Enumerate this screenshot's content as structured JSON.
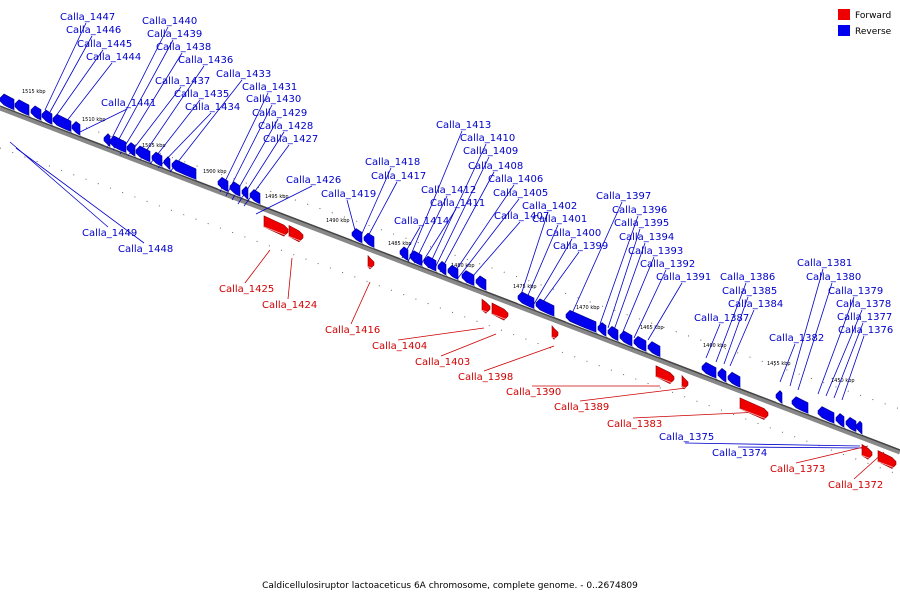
{
  "legend": {
    "forward_label": "Forward",
    "reverse_label": "Reverse",
    "forward_color": "#ee0000",
    "reverse_color": "#0000ee"
  },
  "caption": "Caldicellulosiruptor lactoaceticus 6A chromosome, complete genome. - 0..2674809",
  "axis": {
    "unit": "kbp",
    "ticks": [
      1515,
      1510,
      1505,
      1500,
      1495,
      1490,
      1485,
      1480,
      1475,
      1470,
      1465,
      1460,
      1455,
      1450
    ]
  },
  "reverse_genes": [
    "Calla_1447",
    "Calla_1446",
    "Calla_1445",
    "Calla_1444",
    "Calla_1441",
    "Calla_1440",
    "Calla_1439",
    "Calla_1438",
    "Calla_1437",
    "Calla_1436",
    "Calla_1435",
    "Calla_1434",
    "Calla_1433",
    "Calla_1431",
    "Calla_1430",
    "Calla_1429",
    "Calla_1428",
    "Calla_1427",
    "Calla_1426",
    "Calla_1419",
    "Calla_1418",
    "Calla_1417",
    "Calla_1414",
    "Calla_1413",
    "Calla_1412",
    "Calla_1411",
    "Calla_1410",
    "Calla_1409",
    "Calla_1408",
    "Calla_1407",
    "Calla_1406",
    "Calla_1405",
    "Calla_1402",
    "Calla_1401",
    "Calla_1400",
    "Calla_1399",
    "Calla_1397",
    "Calla_1396",
    "Calla_1395",
    "Calla_1394",
    "Calla_1393",
    "Calla_1392",
    "Calla_1391",
    "Calla_1387",
    "Calla_1386",
    "Calla_1385",
    "Calla_1384",
    "Calla_1382",
    "Calla_1381",
    "Calla_1380",
    "Calla_1379",
    "Calla_1378",
    "Calla_1377",
    "Calla_1376",
    "Calla_1449",
    "Calla_1448",
    "Calla_1375",
    "Calla_1374"
  ],
  "forward_genes": [
    "Calla_1425",
    "Calla_1424",
    "Calla_1416",
    "Calla_1404",
    "Calla_1403",
    "Calla_1398",
    "Calla_1390",
    "Calla_1389",
    "Calla_1383",
    "Calla_1373",
    "Calla_1372"
  ]
}
